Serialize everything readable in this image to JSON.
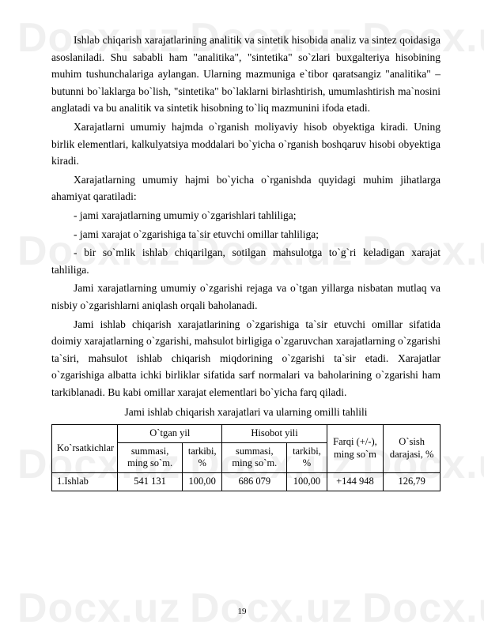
{
  "watermark": "Docx.uz",
  "paragraphs": {
    "p1": "Ishlab chiqarish xarajatlarining analitik va sintetik hisobida analiz va sintez qoidasiga asoslaniladi. Shu sababli ham \"analitika\", \"sintetika\" so`zlari buxgalteriya hisobining muhim tushunchalariga aylangan. Ularning mazmuniga e`tibor qaratsangiz \"analitika\" – butunni bo`laklarga bo`lish, \"sintetika\" bo`laklarni birlashtirish, umumlashtirish ma`nosini anglatadi va bu analitik va sintetik hisobning to`liq mazmunini ifoda etadi.",
    "p2": "Xarajatlarni umumiy hajmda o`rganish moliyaviy hisob obyektiga kiradi. Uning birlik elementlari, kalkulyatsiya moddalari bo`yicha o`rganish boshqaruv hisobi obyektiga kiradi.",
    "p3": "Xarajatlarning umumiy hajmi bo`yicha o`rganishda quyidagi muhim jihatlarga ahamiyat qaratiladi:",
    "p4": "- jami xarajatlarning umumiy o`zgarishlari tahliliga;",
    "p5": "- jami xarajat o`zgarishiga ta`sir etuvchi omillar tahliliga;",
    "p6": "- bir so`mlik ishlab chiqarilgan, sotilgan mahsulotga to`g`ri keladigan xarajat tahliliga.",
    "p7": "Jami xarajatlarning umumiy o`zgarishi rejaga va o`tgan yillarga nisbatan mutlaq va nisbiy o`zgarishlarni aniqlash orqali baholanadi.",
    "p8": "Jami ishlab chiqarish xarajatlarining o`zgarishiga ta`sir etuvchi omillar sifatida doimiy xarajatlarning o`zgarishi, mahsulot birligiga o`zgaruvchan xarajatlarning o`zgarishi ta`siri, mahsulot ishlab chiqarish miqdorining o`zgarishi ta`sir etadi. Xarajatlar o`zgarishiga albatta ichki birliklar sifatida sarf normalari va baholarining o`zgarishi ham tarkiblanadi. Bu kabi omillar xarajat elementlari bo`yicha farq qiladi.",
    "caption": "Jami ishlab chiqarish xarajatlari va ularning omilli tahlili"
  },
  "table": {
    "header": {
      "indicator": "Ko`rsatkichlar",
      "prev_year": "O`tgan yil",
      "report_year": "Hisobot yili",
      "sum": "summasi, ming so`m.",
      "share": "tarkibi, %",
      "diff": "Farqi (+/-), ming so`m",
      "growth": "O`sish darajasi, %"
    },
    "row1": {
      "name": "1.Ishlab",
      "prev_sum": "541 131",
      "prev_share": "100,00",
      "rep_sum": "686 079",
      "rep_share": "100,00",
      "diff": "+144 948",
      "growth": "126,79"
    }
  },
  "page_number": "19"
}
